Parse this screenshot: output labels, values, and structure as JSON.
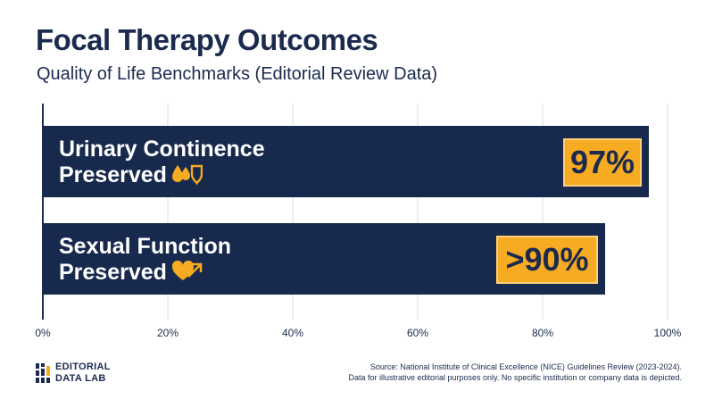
{
  "chart_data": {
    "type": "bar",
    "orientation": "horizontal",
    "title": "Focal Therapy Outcomes",
    "subtitle": "Quality of Life Benchmarks (Editorial Review Data)",
    "categories": [
      "Urinary Continence Preserved",
      "Sexual Function Preserved"
    ],
    "category_lines": [
      [
        "Urinary Continence",
        "Preserved"
      ],
      [
        "Sexual Function",
        "Preserved"
      ]
    ],
    "values": [
      97,
      90
    ],
    "value_labels": [
      "97%",
      ">90%"
    ],
    "icons": [
      "droplets-shield-icon",
      "heart-arrow-icon"
    ],
    "xlim": [
      0,
      100
    ],
    "xticks": [
      0,
      20,
      40,
      60,
      80,
      100
    ],
    "xtick_labels": [
      "0%",
      "20%",
      "40%",
      "60%",
      "80%",
      "100%"
    ],
    "grid": true,
    "colors": {
      "bar": "#172a4e",
      "badge": "#f6ab22",
      "text": "#1b2a4e",
      "grid": "#d9dbe0"
    }
  },
  "footer": {
    "brand_line1": "EDITORIAL",
    "brand_line2": "DATA LAB",
    "source_line1": "Source: National Institute of Clinical Excellence (NICE) Guidelines Review (2023-2024).",
    "source_line2": "Data for illustrative editorial purposes only. No specific institution or company data is depicted."
  }
}
